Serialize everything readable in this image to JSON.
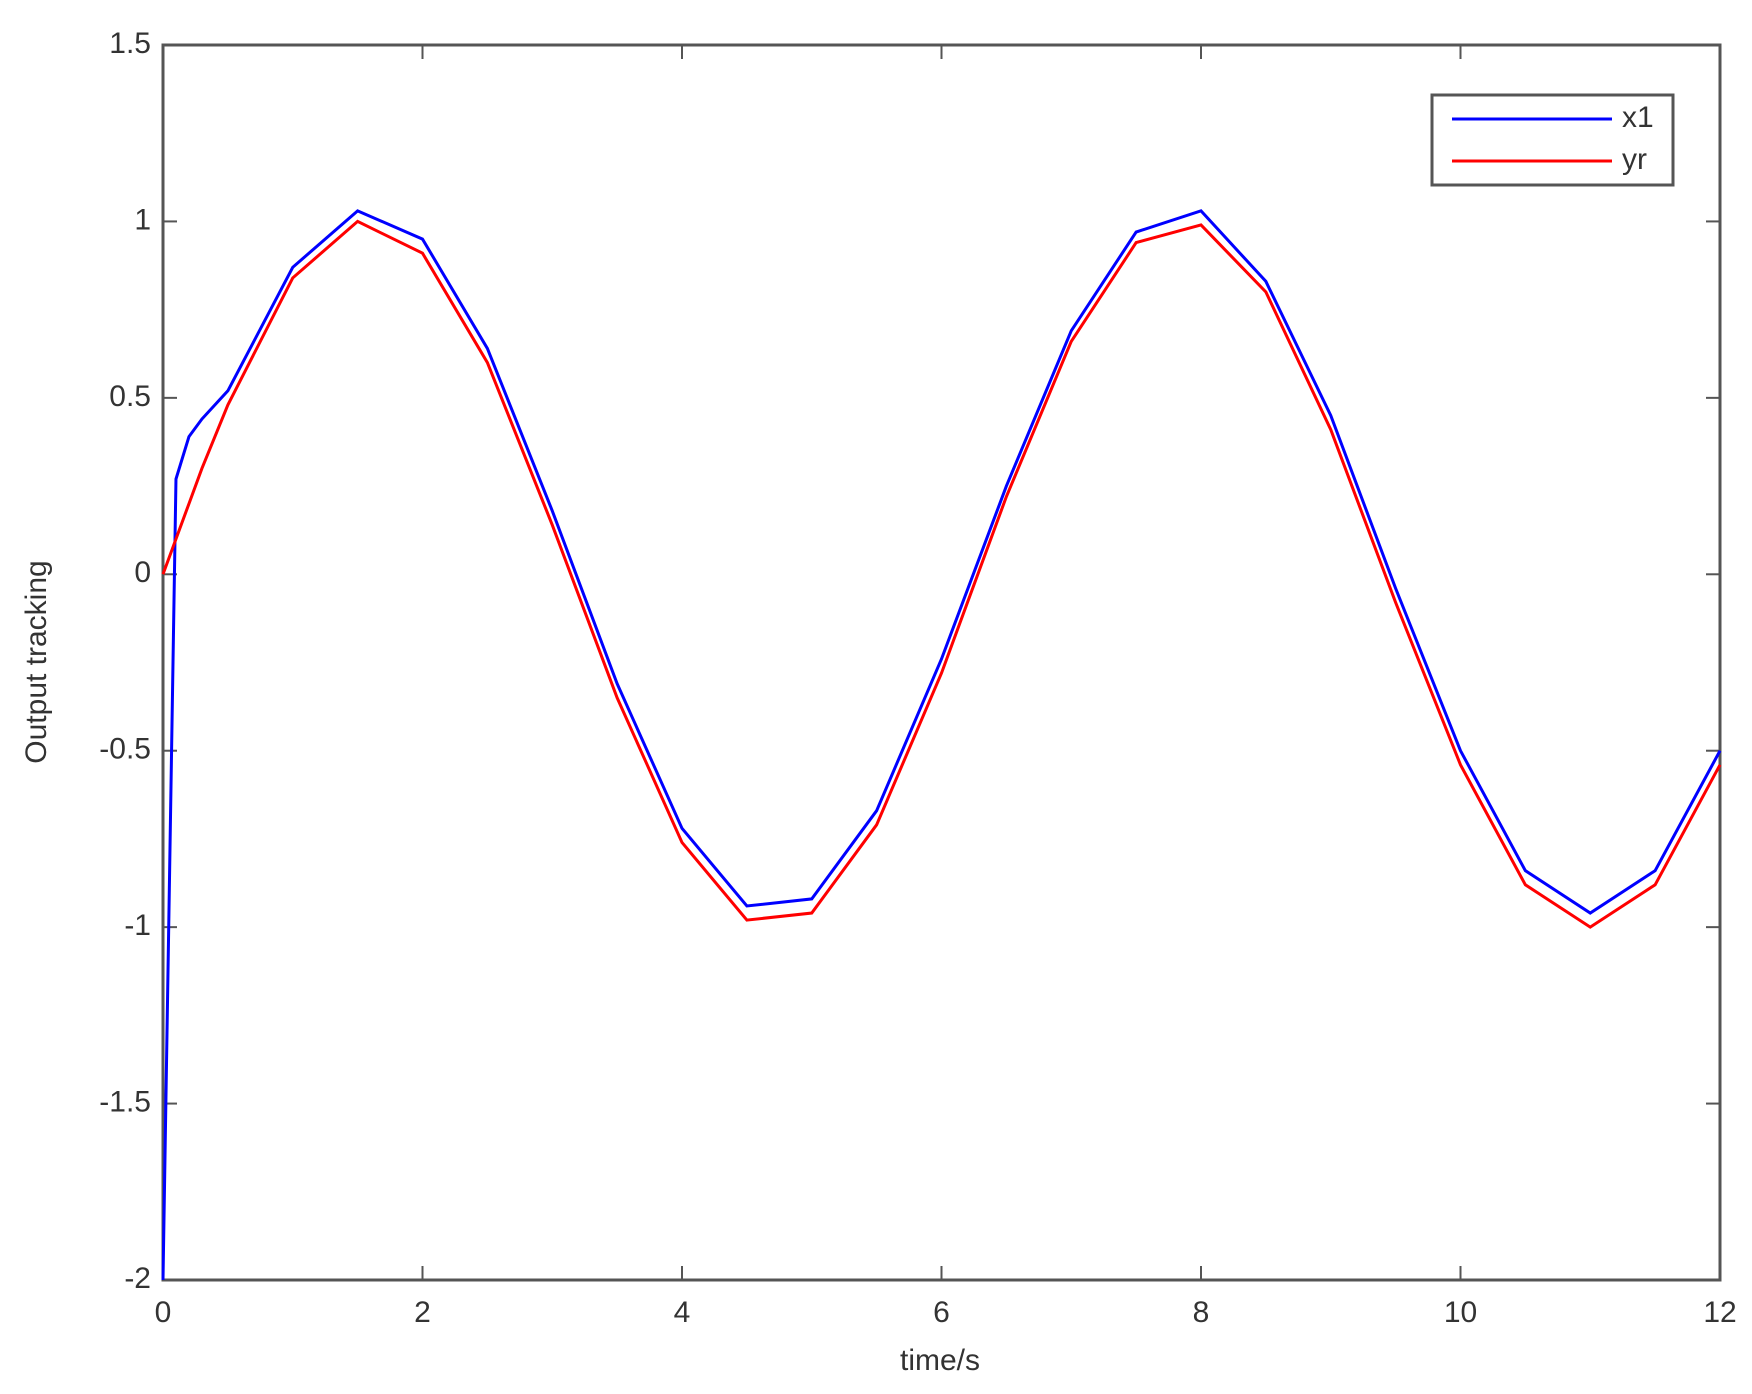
{
  "chart_data": {
    "type": "line",
    "x_label": "time/s",
    "y_label": "Output tracking",
    "x": [
      0,
      0.1,
      0.2,
      0.3,
      0.5,
      1,
      1.5,
      2,
      2.5,
      3,
      3.5,
      4,
      4.5,
      5,
      5.5,
      6,
      6.5,
      7,
      7.5,
      8,
      8.5,
      9,
      9.5,
      10,
      10.5,
      11,
      11.5,
      12
    ],
    "series": [
      {
        "name": "x1",
        "color": "#0000ff",
        "values": [
          -2,
          0.27,
          0.39,
          0.44,
          0.52,
          0.87,
          1.03,
          0.95,
          0.64,
          0.18,
          -0.31,
          -0.72,
          -0.94,
          -0.92,
          -0.67,
          -0.24,
          0.25,
          0.69,
          0.97,
          1.03,
          0.83,
          0.45,
          -0.04,
          -0.5,
          -0.84,
          -0.96,
          -0.84,
          -0.5
        ]
      },
      {
        "name": "yr",
        "color": "#ff0000",
        "values": [
          0,
          0.1,
          0.2,
          0.3,
          0.48,
          0.84,
          1.0,
          0.91,
          0.6,
          0.14,
          -0.35,
          -0.76,
          -0.98,
          -0.96,
          -0.71,
          -0.28,
          0.22,
          0.66,
          0.94,
          0.99,
          0.8,
          0.41,
          -0.08,
          -0.54,
          -0.88,
          -1.0,
          -0.88,
          -0.54
        ]
      }
    ],
    "xlim": [
      0,
      12
    ],
    "xticks": [
      0,
      2,
      4,
      6,
      8,
      10,
      12
    ],
    "ylim": [
      -2,
      1.5
    ],
    "yticks": [
      -2,
      -1.5,
      -1,
      -0.5,
      0,
      0.5,
      1,
      1.5
    ],
    "grid": false,
    "legend": "top-right"
  }
}
